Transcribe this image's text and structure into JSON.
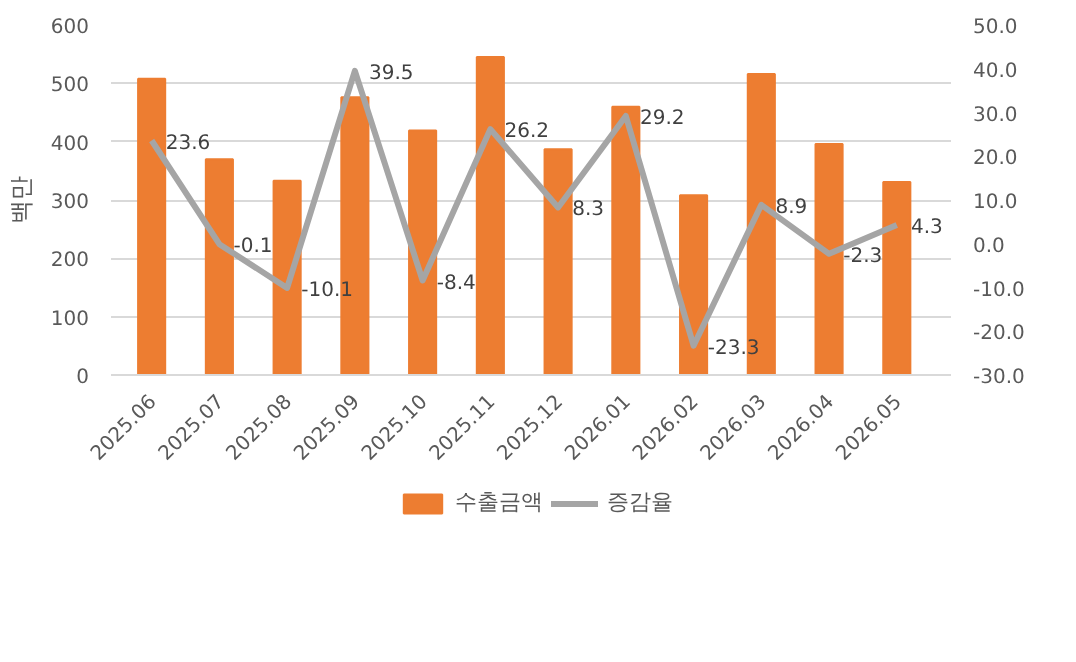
{
  "chart_data": {
    "type": "bar",
    "ylabel": "백만",
    "categories": [
      "2025.06",
      "2025.07",
      "2025.08",
      "2025.09",
      "2025.10",
      "2025.11",
      "2025.12",
      "2026.01",
      "2026.02",
      "2026.03",
      "2026.04",
      "2026.05"
    ],
    "series": [
      {
        "name": "수출금액",
        "color": "#ed7d31",
        "values": [
          508,
          370,
          333,
          476,
          419,
          545,
          387,
          460,
          308,
          516,
          396,
          331
        ]
      },
      {
        "name": "증감율",
        "type": "line",
        "axis": "y2",
        "color": "#a5a5a5",
        "values": [
          23.6,
          -0.1,
          -10.1,
          39.5,
          -8.4,
          26.2,
          8.3,
          29.2,
          -23.3,
          8.9,
          -2.3,
          4.3
        ],
        "value_labels": [
          "23.6",
          "-0.1",
          "-10.1",
          "39.5",
          "-8.4",
          "26.2",
          "8.3",
          "29.2",
          "-23.3",
          "8.9",
          "-2.3",
          "4.3"
        ]
      }
    ],
    "ylim": [
      0,
      600
    ],
    "yticks": [
      0,
      100,
      200,
      300,
      400,
      500,
      600
    ],
    "y2lim": [
      -30,
      50
    ],
    "y2ticks": [
      {
        "value": -30,
        "label": "-30.0"
      },
      {
        "value": -20,
        "label": "-20.0"
      },
      {
        "value": -10,
        "label": "-10.0"
      },
      {
        "value": 0,
        "label": "0.0"
      },
      {
        "value": 10,
        "label": "10.0"
      },
      {
        "value": 20,
        "label": "20.0"
      },
      {
        "value": 30,
        "label": "30.0"
      },
      {
        "value": 40,
        "label": "40.0"
      },
      {
        "value": 50,
        "label": "50.0"
      }
    ],
    "grid": "y",
    "legend": "bottom",
    "marker": "none",
    "line_style": "solid"
  }
}
